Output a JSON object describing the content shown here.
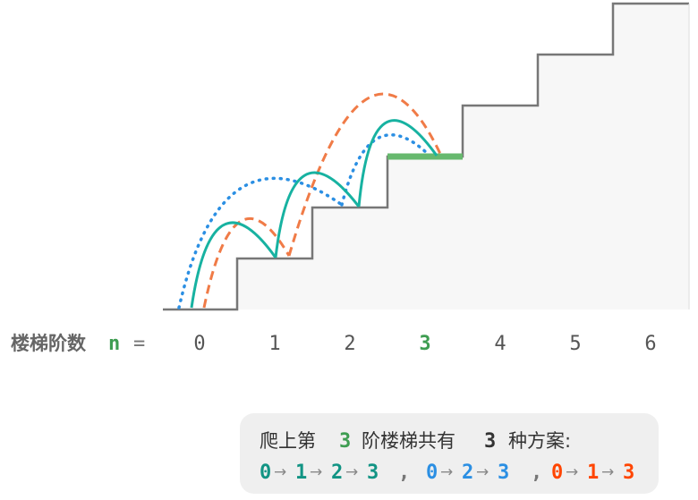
{
  "axis": {
    "title": "楼梯阶数",
    "n_symbol": "n",
    "equals": "=",
    "ticks": [
      "0",
      "1",
      "2",
      "3",
      "4",
      "5",
      "6"
    ],
    "highlight_index": 3
  },
  "colors": {
    "green": "#3e9d51",
    "teal": "#17b2a1",
    "blue": "#2b8fe3",
    "orange": "#f07b47",
    "red": "#ff4500",
    "teal_dark": "#129484",
    "stair_stroke": "#777777",
    "stair_fill": "#f7f7f7",
    "target_step": "#67b96e",
    "box_bg": "#efefef"
  },
  "summary": {
    "prefix": "爬上第",
    "n": "3",
    "middle": "阶楼梯共有",
    "count": "3",
    "suffix": "种方案:",
    "arrow": "→",
    "comma": ",",
    "paths": [
      {
        "color": "teal",
        "steps": [
          "0",
          "1",
          "2",
          "3"
        ]
      },
      {
        "color": "blue",
        "steps": [
          "0",
          "2",
          "3"
        ]
      },
      {
        "color": "orange",
        "steps": [
          "0",
          "1",
          "3"
        ]
      }
    ]
  }
}
